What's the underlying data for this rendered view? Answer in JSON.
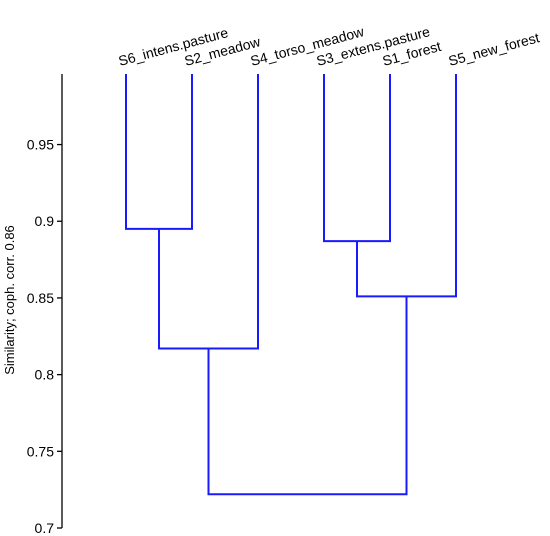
{
  "chart_data": {
    "type": "dendrogram",
    "title": "",
    "ylabel": "Similarity; coph. corr. 0.86",
    "ylim": [
      0.7,
      0.996
    ],
    "y_ticks": [
      0.7,
      0.75,
      0.8,
      0.85,
      0.9,
      0.95
    ],
    "y_tick_labels": [
      "0.7",
      "0.75",
      "0.8",
      "0.85",
      "0.9",
      "0.95"
    ],
    "leaves": [
      "S6_intens.pasture",
      "S2_meadow",
      "S4_torso_meadow",
      "S3_extens.pasture",
      "S1_forest",
      "S5_new_forest"
    ],
    "merges": [
      {
        "left": "S6_intens.pasture",
        "right": "S2_meadow",
        "similarity": 0.895
      },
      {
        "left": "S3_extens.pasture",
        "right": "S1_forest",
        "similarity": 0.887
      },
      {
        "left": "S3_extens.pasture+S1_forest",
        "right": "S5_new_forest",
        "similarity": 0.851
      },
      {
        "left": "S6_intens.pasture+S2_meadow",
        "right": "S4_torso_meadow",
        "similarity": 0.817
      },
      {
        "left": "S6_intens.pasture+S2_meadow+S4_torso_meadow",
        "right": "S3_extens.pasture+S1_forest+S5_new_forest",
        "similarity": 0.722
      }
    ],
    "line_color": "#1a1aff",
    "axis_color": "#000000"
  }
}
